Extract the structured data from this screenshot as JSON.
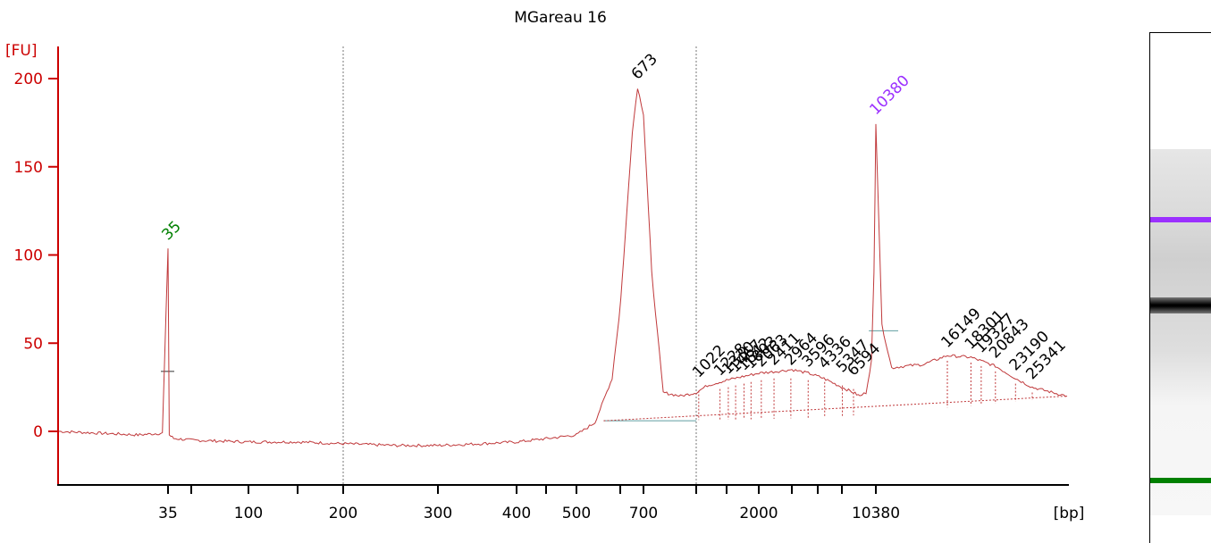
{
  "chart_data": {
    "type": "line",
    "title": "MGareau 16",
    "ylabel": "[FU]",
    "xlabel": "[bp]",
    "ylim": [
      -30,
      215
    ],
    "y_ticks": [
      0,
      50,
      100,
      150,
      200
    ],
    "x_tick_labels": [
      "35",
      "100",
      "200",
      "300",
      "400",
      "500",
      "700",
      "2000",
      "10380"
    ],
    "reference_lines_at": [
      "200",
      "1000"
    ],
    "colors": {
      "axis": "#cc0000",
      "trace": "#c0393b",
      "lower_marker": "#008000",
      "upper_marker": "#9b30ff",
      "peak_label": "#000000"
    },
    "markers": [
      {
        "label": "35",
        "size_bp": 35,
        "fu": 104,
        "color": "#008000"
      },
      {
        "label": "10380",
        "size_bp": 10380,
        "fu": 175,
        "color": "#9b30ff"
      }
    ],
    "peaks": [
      {
        "label": "673",
        "size_bp": 673,
        "fu": 195
      },
      {
        "label": "1022",
        "size_bp": 1022,
        "fu": 26
      },
      {
        "label": "1228",
        "size_bp": 1228,
        "fu": 27
      },
      {
        "label": "1330",
        "size_bp": 1330,
        "fu": 28
      },
      {
        "label": "1467",
        "size_bp": 1467,
        "fu": 29
      },
      {
        "label": "1642",
        "size_bp": 1642,
        "fu": 30
      },
      {
        "label": "1803",
        "size_bp": 1803,
        "fu": 31
      },
      {
        "label": "2063",
        "size_bp": 2063,
        "fu": 32
      },
      {
        "label": "2411",
        "size_bp": 2411,
        "fu": 33
      },
      {
        "label": "2964",
        "size_bp": 2964,
        "fu": 33
      },
      {
        "label": "3596",
        "size_bp": 3596,
        "fu": 32
      },
      {
        "label": "4336",
        "size_bp": 4336,
        "fu": 31
      },
      {
        "label": "5347",
        "size_bp": 5347,
        "fu": 29
      },
      {
        "label": "6594",
        "size_bp": 6594,
        "fu": 27
      },
      {
        "label": "16149",
        "size_bp": 16149,
        "fu": 43
      },
      {
        "label": "18301",
        "size_bp": 18301,
        "fu": 42
      },
      {
        "label": "19327",
        "size_bp": 19327,
        "fu": 40
      },
      {
        "label": "20843",
        "size_bp": 20843,
        "fu": 37
      },
      {
        "label": "23190",
        "size_bp": 23190,
        "fu": 30
      },
      {
        "label": "25341",
        "size_bp": 25341,
        "fu": 25
      }
    ],
    "electropherogram": {
      "x_bp": [
        20,
        30,
        34,
        35,
        36,
        40,
        60,
        100,
        150,
        200,
        250,
        300,
        350,
        400,
        450,
        500,
        540,
        580,
        620,
        650,
        673,
        700,
        740,
        800,
        900,
        1000,
        1100,
        1300,
        1600,
        2000,
        2500,
        3000,
        3600,
        4300,
        5300,
        6594,
        7500,
        8500,
        9500,
        10000,
        10380,
        10800,
        11500,
        12500,
        14000,
        16149,
        18301,
        20843,
        23190,
        25341,
        28000,
        30000
      ],
      "fu": [
        0,
        -2,
        -1,
        104,
        -2,
        -4,
        -5,
        -6,
        -6,
        -7,
        -8,
        -8,
        -7,
        -6,
        -4,
        -2,
        5,
        30,
        110,
        170,
        195,
        180,
        90,
        22,
        20,
        22,
        26,
        29,
        31,
        33,
        34,
        35,
        33,
        30,
        25,
        22,
        20,
        22,
        40,
        90,
        175,
        60,
        36,
        37,
        38,
        43,
        42,
        37,
        30,
        25,
        22,
        20
      ]
    }
  },
  "gel": {
    "bands": [
      {
        "position": "upper marker",
        "color": "#9b30ff"
      },
      {
        "position": "main band",
        "color": "#000000"
      },
      {
        "position": "lower marker",
        "color": "#008000"
      }
    ]
  }
}
